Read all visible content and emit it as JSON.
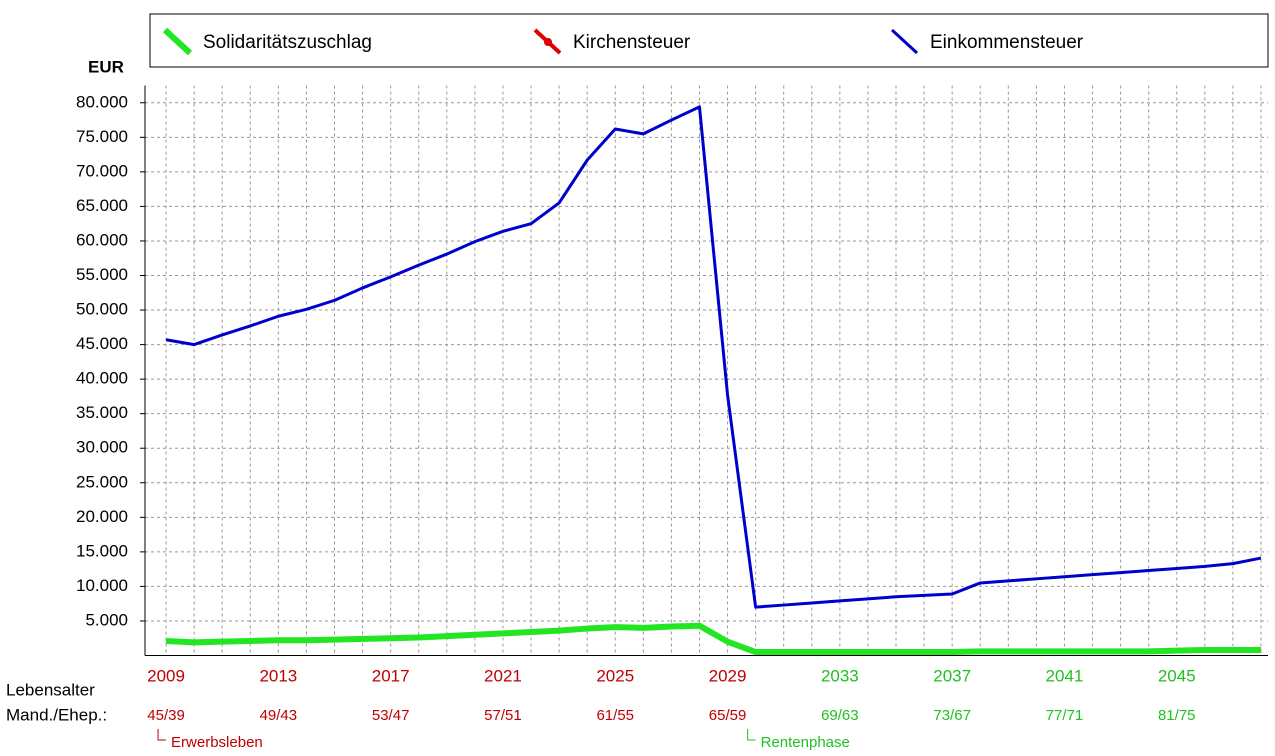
{
  "chart_data": {
    "type": "line",
    "y_unit": "EUR",
    "x": [
      2009,
      2010,
      2011,
      2012,
      2013,
      2014,
      2015,
      2016,
      2017,
      2018,
      2019,
      2020,
      2021,
      2022,
      2023,
      2024,
      2025,
      2026,
      2027,
      2028,
      2029,
      2030,
      2031,
      2032,
      2033,
      2034,
      2035,
      2036,
      2037,
      2038,
      2039,
      2040,
      2041,
      2042,
      2043,
      2044,
      2045,
      2046,
      2047,
      2048
    ],
    "series": [
      {
        "name": "Solidaritätszuschlag",
        "color": "#22e622",
        "values": [
          2100,
          1900,
          2000,
          2100,
          2200,
          2200,
          2300,
          2400,
          2500,
          2600,
          2800,
          3000,
          3200,
          3400,
          3600,
          3900,
          4100,
          4000,
          4200,
          4300,
          2000,
          500,
          500,
          500,
          500,
          500,
          500,
          500,
          500,
          600,
          600,
          600,
          600,
          600,
          600,
          600,
          700,
          800,
          800,
          800
        ]
      },
      {
        "name": "Kirchensteuer",
        "color": "#e00000",
        "values": [
          null,
          null,
          null,
          null,
          null,
          null,
          null,
          null,
          null,
          null,
          null,
          null,
          null,
          null,
          null,
          null,
          null,
          null,
          null,
          null,
          null,
          null,
          null,
          null,
          null,
          null,
          null,
          null,
          null,
          null,
          null,
          null,
          null,
          null,
          null,
          null,
          null,
          null,
          null,
          null
        ]
      },
      {
        "name": "Einkommensteuer",
        "color": "#0000cc",
        "values": [
          45700,
          45000,
          46400,
          47700,
          49100,
          50100,
          51400,
          53200,
          54800,
          56500,
          58100,
          59900,
          61400,
          62500,
          65500,
          71700,
          76200,
          75500,
          77500,
          79400,
          37700,
          7000,
          7300,
          7600,
          7900,
          8200,
          8500,
          8700,
          8900,
          10500,
          10800,
          11100,
          11400,
          11700,
          12000,
          12300,
          12600,
          12900,
          13300,
          14100
        ]
      }
    ],
    "xlim": [
      2008.25,
      2048.25
    ],
    "ylim": [
      0,
      82500
    ],
    "yticks": [
      {
        "value": 5000,
        "label": "5.000"
      },
      {
        "value": 10000,
        "label": "10.000"
      },
      {
        "value": 15000,
        "label": "15.000"
      },
      {
        "value": 20000,
        "label": "20.000"
      },
      {
        "value": 25000,
        "label": "25.000"
      },
      {
        "value": 30000,
        "label": "30.000"
      },
      {
        "value": 35000,
        "label": "35.000"
      },
      {
        "value": 40000,
        "label": "40.000"
      },
      {
        "value": 45000,
        "label": "45.000"
      },
      {
        "value": 50000,
        "label": "50.000"
      },
      {
        "value": 55000,
        "label": "55.000"
      },
      {
        "value": 60000,
        "label": "60.000"
      },
      {
        "value": 65000,
        "label": "65.000"
      },
      {
        "value": 70000,
        "label": "70.000"
      },
      {
        "value": 75000,
        "label": "75.000"
      },
      {
        "value": 80000,
        "label": "80.000"
      }
    ],
    "xticks": [
      2009,
      2013,
      2017,
      2021,
      2025,
      2029,
      2033,
      2037,
      2041,
      2045
    ],
    "xtick_colors": [
      "#c00000",
      "#c00000",
      "#c00000",
      "#c00000",
      "#c00000",
      "#c00000",
      "#22c022",
      "#22c022",
      "#22c022",
      "#22c022"
    ],
    "age_title": "Lebensalter",
    "age_row_label": "Mand./Ehep.:",
    "age_labels": [
      "45/39",
      "49/43",
      "53/47",
      "57/51",
      "61/55",
      "65/59",
      "69/63",
      "73/67",
      "77/71",
      "81/75"
    ],
    "annotations": [
      {
        "text": "Erwerbsleben",
        "x": 2009,
        "color": "#c00000"
      },
      {
        "text": "Rentenphase",
        "x": 2030,
        "color": "#22c022"
      }
    ],
    "grid": true
  }
}
